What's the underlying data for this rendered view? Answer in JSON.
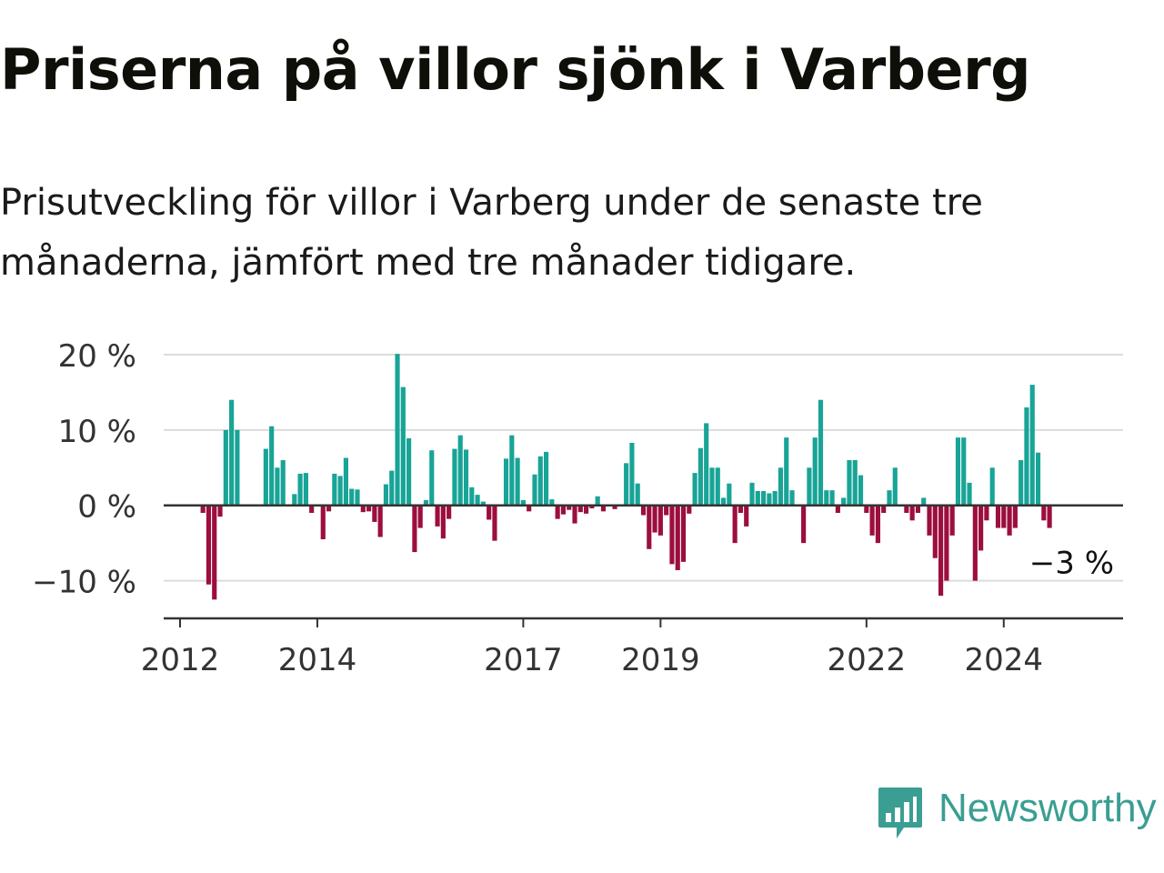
{
  "title": "Priserna på villor sjönk i Varberg",
  "subtitle": "Prisutveckling för villor i Varberg under de senaste tre månaderna, jämfört med tre månader tidigare.",
  "brand": {
    "name": "Newsworthy",
    "color": "#3a9e92",
    "icon": "newsworthy-bar-chart-icon"
  },
  "chart_data": {
    "type": "bar",
    "ylim": [
      -15,
      20
    ],
    "yticks": [
      20,
      10,
      0,
      -10
    ],
    "ytick_labels": [
      "20 %",
      "10 %",
      "0 %",
      "−10 %"
    ],
    "xtick_labels": [
      "2012",
      "2014",
      "2017",
      "2019",
      "2022",
      "2024"
    ],
    "xtick_years": [
      2012,
      2014,
      2017,
      2019,
      2022,
      2024
    ],
    "grid": true,
    "colors": {
      "positive": "#18a497",
      "negative": "#9c0e3e"
    },
    "start": "2012-05",
    "frequency": "monthly",
    "values": [
      -1,
      -10.5,
      -12.5,
      -1.5,
      10,
      14,
      10,
      null,
      null,
      null,
      null,
      7.5,
      10.5,
      5,
      6,
      null,
      1.5,
      4.2,
      4.3,
      -1,
      null,
      -4.5,
      -0.8,
      4.2,
      3.9,
      6.3,
      2.2,
      2.1,
      -0.9,
      -0.8,
      -2.2,
      -4.2,
      2.8,
      4.6,
      20.1,
      15.7,
      8.9,
      -6.2,
      -3,
      0.7,
      7.3,
      -2.8,
      -4.4,
      -1.8,
      7.5,
      9.3,
      7.4,
      2.4,
      1.4,
      0.5,
      -1.9,
      -4.7,
      0.1,
      6.2,
      9.3,
      6.3,
      0.7,
      -0.8,
      4.1,
      6.5,
      7.1,
      0.8,
      -1.8,
      -1.2,
      -0.6,
      -2.4,
      -0.9,
      -1.1,
      -0.4,
      1.2,
      -0.8,
      0.1,
      -0.5,
      0.1,
      5.6,
      8.3,
      2.9,
      -1.3,
      -5.8,
      -3.6,
      -4,
      -1.3,
      -7.8,
      -8.6,
      -7.5,
      -1.1,
      4.3,
      7.6,
      10.9,
      5,
      5,
      1,
      2.9,
      -5,
      -1,
      -2.8,
      3,
      1.9,
      1.9,
      1.6,
      1.9,
      5,
      9,
      2,
      0.1,
      -5,
      5,
      9,
      14,
      2,
      2,
      -1,
      1,
      6,
      6,
      4,
      -1,
      -4,
      -5,
      -1,
      2,
      5,
      0.1,
      -1,
      -2,
      -1,
      1,
      -4,
      -7,
      -12,
      -10,
      -4,
      9,
      9,
      3,
      -10,
      -6,
      -2,
      5,
      -3,
      -3,
      -4,
      -3,
      6,
      13,
      16,
      7,
      -2,
      -3
    ],
    "last_value_label": "−3 %"
  }
}
